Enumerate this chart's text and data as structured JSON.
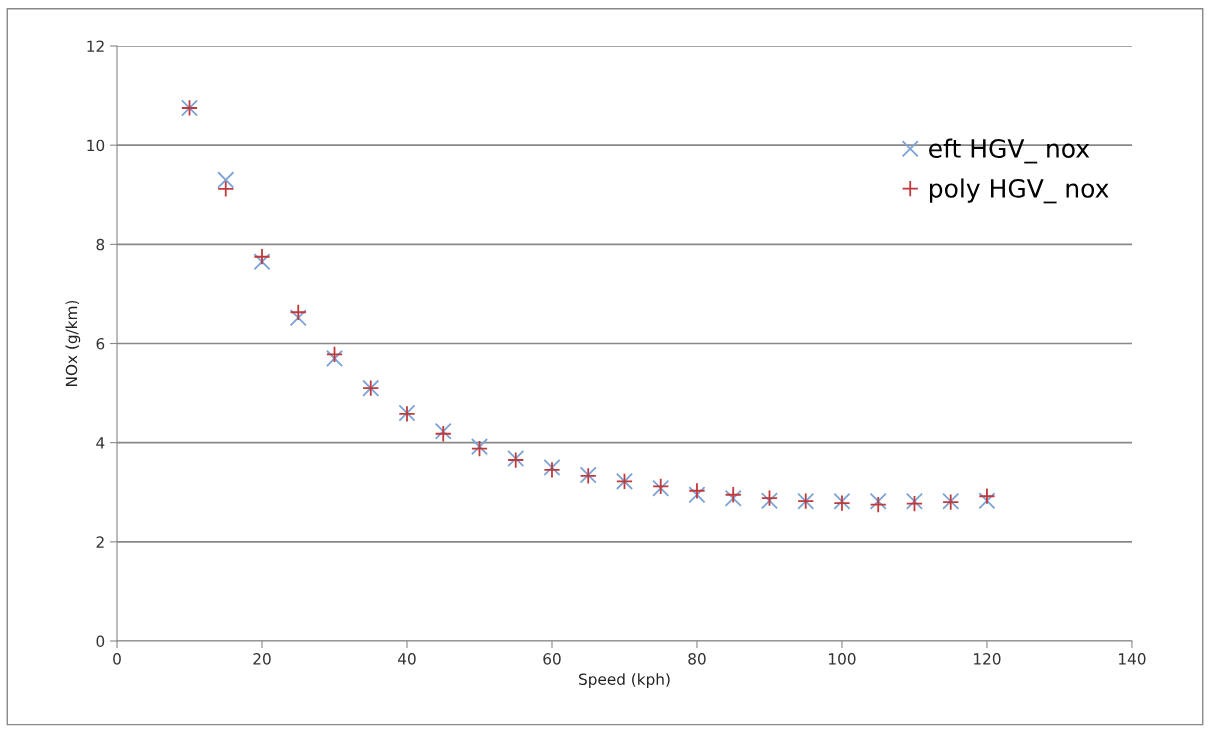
{
  "chart_data": {
    "type": "scatter",
    "xlabel": "Speed (kph)",
    "ylabel": "NOx (g/km)",
    "x": [
      10,
      15,
      20,
      25,
      30,
      35,
      40,
      45,
      50,
      55,
      60,
      65,
      70,
      75,
      80,
      85,
      90,
      95,
      100,
      105,
      110,
      115,
      120
    ],
    "series": [
      {
        "name": "eft HGV_ nox",
        "color": "#7ba3d6",
        "marker": "cross",
        "values": [
          10.75,
          9.3,
          7.65,
          6.52,
          5.7,
          5.1,
          4.6,
          4.23,
          3.92,
          3.68,
          3.5,
          3.35,
          3.22,
          3.08,
          2.95,
          2.88,
          2.83,
          2.82,
          2.82,
          2.82,
          2.82,
          2.82,
          2.83
        ]
      },
      {
        "name": "poly HGV_ nox",
        "color": "#c0393b",
        "marker": "plus",
        "values": [
          10.75,
          9.12,
          7.75,
          6.63,
          5.78,
          5.1,
          4.58,
          4.18,
          3.88,
          3.65,
          3.45,
          3.33,
          3.22,
          3.12,
          3.03,
          2.95,
          2.88,
          2.82,
          2.78,
          2.75,
          2.77,
          2.8,
          2.92
        ]
      }
    ],
    "xlim": [
      0,
      140
    ],
    "xticks": [
      0,
      20,
      40,
      60,
      80,
      100,
      120,
      140
    ],
    "ylim": [
      0,
      12
    ],
    "yticks": [
      0,
      2,
      4,
      6,
      8,
      10,
      12
    ],
    "grid": "y",
    "legend": "right"
  }
}
